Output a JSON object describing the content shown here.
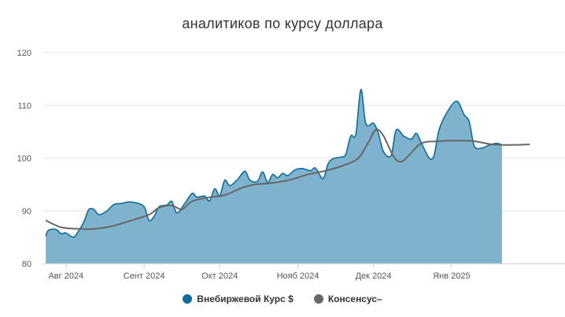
{
  "chart_data": {
    "type": "area",
    "title": "аналитиков по курсу доллара",
    "ylim": [
      80,
      120
    ],
    "yticks": [
      80,
      90,
      100,
      110,
      120
    ],
    "xlim": [
      "2024-07-23",
      "2025-02-15"
    ],
    "xticks": [
      {
        "label": "Авг 2024",
        "date": "2024-08-01"
      },
      {
        "label": "Сент 2024",
        "date": "2024-09-01"
      },
      {
        "label": "Окт 2024",
        "date": "2024-10-01"
      },
      {
        "label": "Нояб 2024",
        "date": "2024-11-01"
      },
      {
        "label": "Дек 2024",
        "date": "2024-12-01"
      },
      {
        "label": "Янв 2025",
        "date": "2025-01-01"
      }
    ],
    "grid": true,
    "legend_position": "bottom",
    "series": [
      {
        "name": "Внебиржевой Курс $",
        "kind": "area",
        "color": "#0f6b9b",
        "fill": "#7fb2cc",
        "points": [
          [
            "2024-07-24",
            85.2
          ],
          [
            "2024-07-25",
            86.3
          ],
          [
            "2024-07-28",
            86.5
          ],
          [
            "2024-07-30",
            85.7
          ],
          [
            "2024-08-01",
            85.8
          ],
          [
            "2024-08-04",
            85.0
          ],
          [
            "2024-08-06",
            86.2
          ],
          [
            "2024-08-08",
            87.8
          ],
          [
            "2024-08-10",
            90.2
          ],
          [
            "2024-08-12",
            90.3
          ],
          [
            "2024-08-14",
            89.3
          ],
          [
            "2024-08-17",
            89.9
          ],
          [
            "2024-08-20",
            91.2
          ],
          [
            "2024-08-23",
            91.4
          ],
          [
            "2024-08-26",
            91.7
          ],
          [
            "2024-08-29",
            91.5
          ],
          [
            "2024-09-01",
            90.8
          ],
          [
            "2024-09-03",
            88.2
          ],
          [
            "2024-09-05",
            89.0
          ],
          [
            "2024-09-07",
            90.8
          ],
          [
            "2024-09-10",
            91.1
          ],
          [
            "2024-09-12",
            91.8
          ],
          [
            "2024-09-14",
            89.6
          ],
          [
            "2024-09-17",
            91.3
          ],
          [
            "2024-09-20",
            93.3
          ],
          [
            "2024-09-22",
            92.6
          ],
          [
            "2024-09-25",
            92.8
          ],
          [
            "2024-09-27",
            91.9
          ],
          [
            "2024-09-29",
            94.2
          ],
          [
            "2024-10-01",
            92.9
          ],
          [
            "2024-10-03",
            95.8
          ],
          [
            "2024-10-05",
            94.8
          ],
          [
            "2024-10-08",
            95.9
          ],
          [
            "2024-10-11",
            97.5
          ],
          [
            "2024-10-13",
            95.8
          ],
          [
            "2024-10-16",
            95.6
          ],
          [
            "2024-10-18",
            97.4
          ],
          [
            "2024-10-20",
            95.4
          ],
          [
            "2024-10-22",
            96.9
          ],
          [
            "2024-10-24",
            96.3
          ],
          [
            "2024-10-26",
            97.1
          ],
          [
            "2024-10-28",
            96.7
          ],
          [
            "2024-10-31",
            97.8
          ],
          [
            "2024-11-03",
            98.0
          ],
          [
            "2024-11-06",
            97.6
          ],
          [
            "2024-11-08",
            98.1
          ],
          [
            "2024-11-11",
            96.1
          ],
          [
            "2024-11-13",
            98.9
          ],
          [
            "2024-11-15",
            99.9
          ],
          [
            "2024-11-18",
            100.2
          ],
          [
            "2024-11-20",
            100.7
          ],
          [
            "2024-11-22",
            104.2
          ],
          [
            "2024-11-24",
            104.5
          ],
          [
            "2024-11-26",
            113.0
          ],
          [
            "2024-11-28",
            106.5
          ],
          [
            "2024-12-01",
            106.6
          ],
          [
            "2024-12-03",
            104.6
          ],
          [
            "2024-12-05",
            101.2
          ],
          [
            "2024-12-08",
            100.5
          ],
          [
            "2024-12-10",
            105.3
          ],
          [
            "2024-12-13",
            104.2
          ],
          [
            "2024-12-16",
            103.6
          ],
          [
            "2024-12-18",
            104.7
          ],
          [
            "2024-12-20",
            102.9
          ],
          [
            "2024-12-23",
            100.1
          ],
          [
            "2024-12-25",
            100.4
          ],
          [
            "2024-12-27",
            105.3
          ],
          [
            "2024-12-30",
            108.5
          ],
          [
            "2025-01-03",
            110.8
          ],
          [
            "2025-01-06",
            108.2
          ],
          [
            "2025-01-08",
            106.9
          ],
          [
            "2025-01-10",
            102.3
          ],
          [
            "2025-01-13",
            101.9
          ],
          [
            "2025-01-16",
            102.5
          ],
          [
            "2025-01-19",
            102.8
          ],
          [
            "2025-01-21",
            102.5
          ]
        ]
      },
      {
        "name": "Консенсус–",
        "kind": "line",
        "color": "#666666",
        "points": [
          [
            "2024-07-24",
            88.2
          ],
          [
            "2024-07-30",
            86.9
          ],
          [
            "2024-08-06",
            86.6
          ],
          [
            "2024-08-13",
            86.6
          ],
          [
            "2024-08-20",
            87.2
          ],
          [
            "2024-08-27",
            88.2
          ],
          [
            "2024-09-03",
            89.3
          ],
          [
            "2024-09-07",
            90.6
          ],
          [
            "2024-09-12",
            91.0
          ],
          [
            "2024-09-16",
            90.3
          ],
          [
            "2024-09-20",
            91.8
          ],
          [
            "2024-09-26",
            92.5
          ],
          [
            "2024-10-03",
            93.0
          ],
          [
            "2024-10-10",
            94.4
          ],
          [
            "2024-10-15",
            95.0
          ],
          [
            "2024-10-22",
            95.3
          ],
          [
            "2024-10-29",
            95.9
          ],
          [
            "2024-11-05",
            96.9
          ],
          [
            "2024-11-12",
            97.6
          ],
          [
            "2024-11-19",
            98.6
          ],
          [
            "2024-11-25",
            100.0
          ],
          [
            "2024-11-29",
            103.0
          ],
          [
            "2024-12-02",
            105.4
          ],
          [
            "2024-12-05",
            104.2
          ],
          [
            "2024-12-09",
            100.3
          ],
          [
            "2024-12-12",
            99.3
          ],
          [
            "2024-12-15",
            100.5
          ],
          [
            "2024-12-20",
            102.8
          ],
          [
            "2024-12-27",
            103.2
          ],
          [
            "2025-01-03",
            103.3
          ],
          [
            "2025-01-10",
            103.2
          ],
          [
            "2025-01-17",
            102.6
          ],
          [
            "2025-01-24",
            102.5
          ],
          [
            "2025-02-01",
            102.6
          ]
        ]
      }
    ]
  }
}
